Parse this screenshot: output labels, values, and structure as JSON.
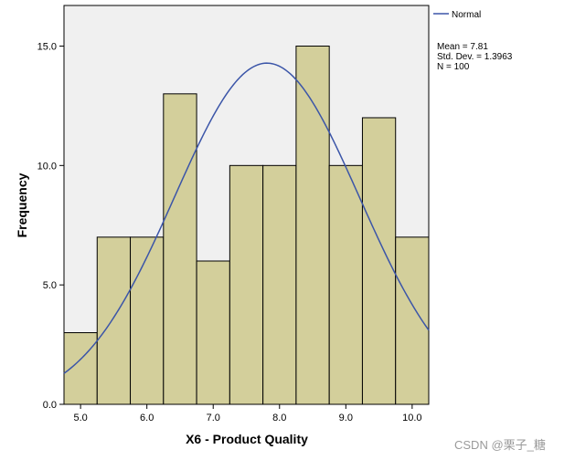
{
  "chart_data": {
    "type": "bar",
    "title": "",
    "xlabel": "X6 - Product Quality",
    "ylabel": "Frequency",
    "bins": [
      {
        "start": 4.75,
        "end": 5.25,
        "count": 3
      },
      {
        "start": 5.25,
        "end": 5.75,
        "count": 7
      },
      {
        "start": 5.75,
        "end": 6.25,
        "count": 7
      },
      {
        "start": 6.25,
        "end": 6.75,
        "count": 13
      },
      {
        "start": 6.75,
        "end": 7.25,
        "count": 6
      },
      {
        "start": 7.25,
        "end": 7.75,
        "count": 10
      },
      {
        "start": 7.75,
        "end": 8.25,
        "count": 10
      },
      {
        "start": 8.25,
        "end": 8.75,
        "count": 15
      },
      {
        "start": 8.75,
        "end": 9.25,
        "count": 10
      },
      {
        "start": 9.25,
        "end": 9.75,
        "count": 12
      },
      {
        "start": 9.75,
        "end": 10.25,
        "count": 7
      }
    ],
    "xlim": [
      4.75,
      10.25
    ],
    "ylim": [
      0,
      16.7
    ],
    "x_ticks": [
      5.0,
      6.0,
      7.0,
      8.0,
      9.0,
      10.0
    ],
    "x_tick_labels": [
      "5.0",
      "6.0",
      "7.0",
      "8.0",
      "9.0",
      "10.0"
    ],
    "y_ticks": [
      0,
      5,
      10,
      15
    ],
    "y_tick_labels": [
      "0.0",
      "5.0",
      "10.0",
      "15.0"
    ],
    "normal_curve": {
      "name": "Normal",
      "mean": 7.81,
      "std": 1.3963,
      "n": 100,
      "bin_width": 0.5,
      "color": "#3b55a8"
    },
    "legend": {
      "placement": "top-right",
      "entry": "Normal"
    },
    "stats": {
      "lines": [
        "Mean = 7.81",
        "Std. Dev. = 1.3963",
        "N = 100"
      ]
    },
    "colors": {
      "bar_fill": "#d3cf9b",
      "bar_stroke": "#000000",
      "plot_background": "#f0f0f0",
      "curve": "#3b55a8"
    },
    "grid": false
  },
  "watermark": "CSDN @栗子_糖"
}
